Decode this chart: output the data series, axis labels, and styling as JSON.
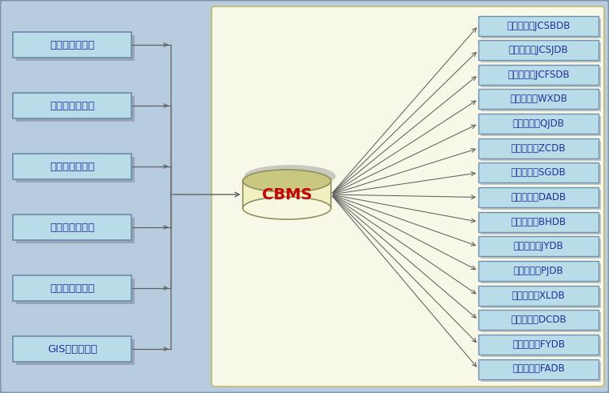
{
  "left_boxes": [
    "数据管理子系统",
    "统计查询子系统",
    "评价决策子系统",
    "费用模型子系统",
    "维修计划子系统",
    "GIS应用子系统"
  ],
  "right_boxes": [
    "识别数据库JCSBDB",
    "结构数据库JCSJDB",
    "经济指标库JCFSDB",
    "维修历史库WXDB",
    "特殊检查库QJDB",
    "重车过桥库ZCDB",
    "桥上事故库SGDB",
    "桥梁档案库DADB",
    "病害数据库BHDB",
    "维修建议库JYDB",
    "桥梁评价库PJDB",
    "维修基价库XLDB",
    "对策基价库DCDB",
    "费用数据库FYDB",
    "方案数据库FADB"
  ],
  "cbms_label": "CBMS",
  "outer_bg": "#b8cce0",
  "inner_bg": "#f8f8e8",
  "left_box_face": "#b8dce8",
  "left_box_edge": "#7090b0",
  "left_shadow": "#808898",
  "right_box_face": "#b8dce8",
  "right_box_edge": "#7090b0",
  "right_shadow": "#808898",
  "arrow_color": "#606060",
  "cbms_body_color": "#f0f0c0",
  "cbms_top_color": "#f8f8e0",
  "cbms_bottom_color": "#c8c880",
  "cbms_edge_color": "#909060",
  "cbms_shadow_color": "#909090",
  "cbms_text_color": "#cc0000",
  "left_text_color": "#2030a0",
  "right_text_color": "#2030a0",
  "inner_edge_color": "#c0c080",
  "outer_edge_color": "#8090a8"
}
